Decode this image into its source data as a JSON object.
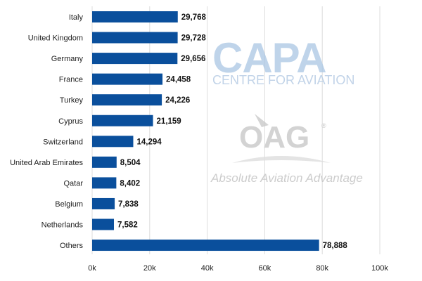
{
  "chart_data": {
    "type": "bar",
    "orientation": "horizontal",
    "categories": [
      "Italy",
      "United Kingdom",
      "Germany",
      "France",
      "Turkey",
      "Cyprus",
      "Switzerland",
      "United Arab Emirates",
      "Qatar",
      "Belgium",
      "Netherlands",
      "Others"
    ],
    "values": [
      29768,
      29728,
      29656,
      24458,
      24226,
      21159,
      14294,
      8504,
      8402,
      7838,
      7582,
      78888
    ],
    "value_labels": [
      "29,768",
      "29,728",
      "29,656",
      "24,458",
      "24,226",
      "21,159",
      "14,294",
      "8,504",
      "8,402",
      "7,838",
      "7,582",
      "78,888"
    ],
    "x_ticks": [
      0,
      20000,
      40000,
      60000,
      80000,
      100000
    ],
    "x_tick_labels": [
      "0k",
      "20k",
      "40k",
      "60k",
      "80k",
      "100k"
    ],
    "xlim": [
      0,
      100000
    ],
    "grid": true,
    "legend": "none",
    "colors": {
      "bar": "#0a4f9c",
      "grid": "#dcdcdc"
    }
  },
  "watermarks": {
    "capa_logo": "CAPA",
    "capa_subtitle": "CENTRE FOR AVIATION",
    "oag_logo": "OAG",
    "oag_tagline": "Absolute Aviation Advantage"
  }
}
